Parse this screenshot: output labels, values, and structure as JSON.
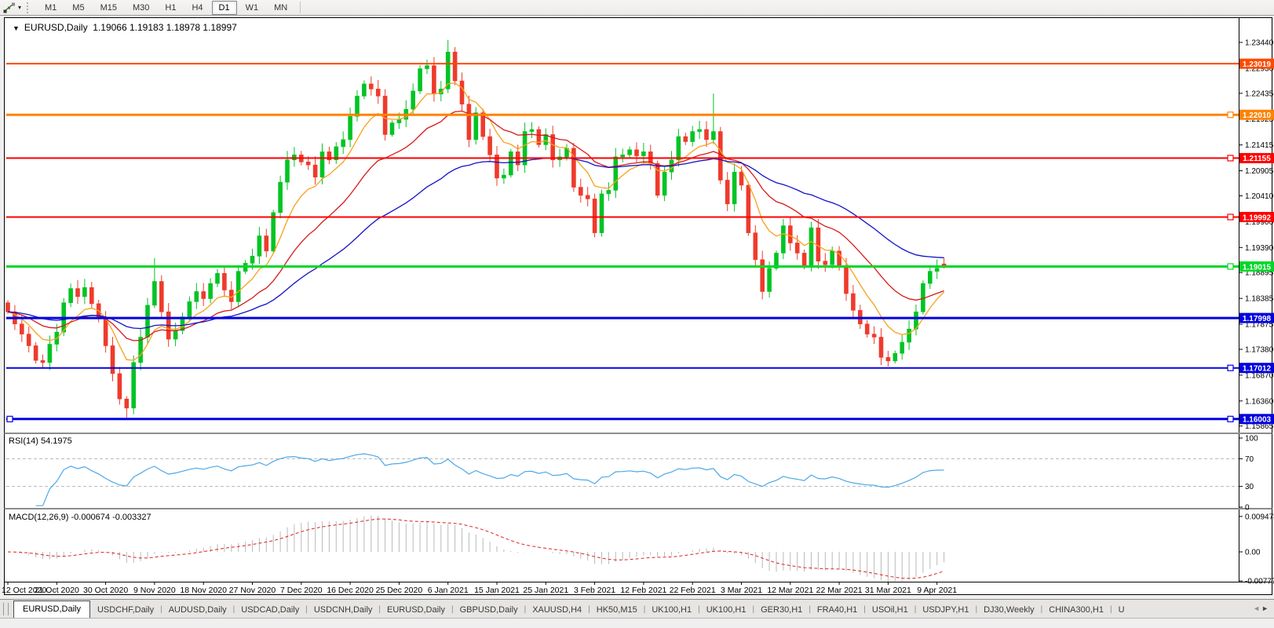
{
  "toolbar": {
    "tool_icon": "line-studies-icon",
    "tool_caret": "▾",
    "timeframes": [
      "M1",
      "M5",
      "M15",
      "M30",
      "H1",
      "H4",
      "D1",
      "W1",
      "MN"
    ],
    "active_timeframe": "D1"
  },
  "chart": {
    "symbol": "EURUSD",
    "timeframe": "Daily",
    "title": "EURUSD,Daily",
    "expand_caret": "▼",
    "ohlc": "1.19066 1.19183 1.18978 1.18997",
    "colors": {
      "background": "#ffffff",
      "border": "#000000",
      "up": "#00C424",
      "down": "#EE3B2C",
      "ma_fast": "#F7A21B",
      "ma_mid": "#D81A1A",
      "ma_slow": "#1212C8",
      "axis_text": "#000000"
    },
    "price_axis_ticks": [
      "1.23440",
      "1.22930",
      "1.22435",
      "1.21925",
      "1.21415",
      "1.20905",
      "1.20410",
      "1.19900",
      "1.19390",
      "1.18895",
      "1.18385",
      "1.17875",
      "1.17380",
      "1.16870",
      "1.16360",
      "1.15865"
    ],
    "hlines": [
      {
        "label": "1.23019",
        "value": 1.23019,
        "color": "#FF4A00",
        "thickness": 2,
        "handles": false,
        "left_handle": false
      },
      {
        "label": "1.22010",
        "value": 1.2201,
        "color": "#FF8200",
        "thickness": 3,
        "handles": true,
        "left_handle": false
      },
      {
        "label": "1.21155",
        "value": 1.21155,
        "color": "#FF0000",
        "thickness": 2,
        "handles": true,
        "left_handle": false
      },
      {
        "label": "1.19992",
        "value": 1.19992,
        "color": "#FF0000",
        "thickness": 2,
        "handles": true,
        "left_handle": false
      },
      {
        "label": "1.19015",
        "value": 1.19015,
        "color": "#00D728",
        "thickness": 3,
        "handles": true,
        "left_handle": false
      },
      {
        "label": "1.17998",
        "value": 1.17998,
        "color": "#0202E0",
        "thickness": 3,
        "handles": false,
        "left_handle": false
      },
      {
        "label": "1.17012",
        "value": 1.17012,
        "color": "#0202E0",
        "thickness": 2,
        "handles": true,
        "left_handle": false
      },
      {
        "label": "1.16003",
        "value": 1.16003,
        "color": "#0202E0",
        "thickness": 3,
        "handles": true,
        "left_handle": true
      }
    ],
    "dates": [
      "12 Oct 2020",
      "21 Oct 2020",
      "30 Oct 2020",
      "9 Nov 2020",
      "18 Nov 2020",
      "27 Nov 2020",
      "7 Dec 2020",
      "16 Dec 2020",
      "25 Dec 2020",
      "6 Jan 2021",
      "15 Jan 2021",
      "25 Jan 2021",
      "3 Feb 2021",
      "12 Feb 2021",
      "22 Feb 2021",
      "3 Mar 2021",
      "12 Mar 2021",
      "22 Mar 2021",
      "31 Mar 2021",
      "9 Apr 2021"
    ],
    "candles": {
      "first_open": 1.183,
      "closes": [
        1.1812,
        1.1788,
        1.1768,
        1.1745,
        1.1716,
        1.1712,
        1.1748,
        1.1772,
        1.183,
        1.1858,
        1.1842,
        1.186,
        1.1828,
        1.1798,
        1.1745,
        1.169,
        1.164,
        1.1622,
        1.1712,
        1.1762,
        1.1825,
        1.1872,
        1.1812,
        1.1758,
        1.1775,
        1.1802,
        1.1832,
        1.1852,
        1.1838,
        1.1868,
        1.1888,
        1.1855,
        1.1832,
        1.1892,
        1.1908,
        1.1922,
        1.1962,
        1.1932,
        1.2008,
        1.2068,
        1.2112,
        1.2122,
        1.2108,
        1.2102,
        1.2078,
        1.2128,
        1.2112,
        1.2138,
        1.2152,
        1.2198,
        1.2238,
        1.2262,
        1.2252,
        1.2238,
        1.2162,
        1.2185,
        1.2192,
        1.2212,
        1.2248,
        1.2292,
        1.2298,
        1.2242,
        1.2252,
        1.2325,
        1.2268,
        1.2222,
        1.2152,
        1.2205,
        1.2158,
        1.2122,
        1.2076,
        1.2082,
        1.2128,
        1.2102,
        1.2168,
        1.2172,
        1.2142,
        1.2162,
        1.2112,
        1.2118,
        1.2135,
        1.2058,
        1.2042,
        1.2035,
        1.1968,
        1.2045,
        1.2052,
        1.2118,
        1.2122,
        1.2132,
        1.212,
        1.2128,
        1.2105,
        1.2042,
        1.2088,
        1.2112,
        1.2158,
        1.2148,
        1.2168,
        1.2172,
        1.2152,
        1.2168,
        1.2072,
        1.2025,
        1.2088,
        1.2062,
        1.1968,
        1.1915,
        1.1852,
        1.1898,
        1.1928,
        1.1982,
        1.1948,
        1.1928,
        1.1902,
        1.1978,
        1.1912,
        1.1905,
        1.1932,
        1.1902,
        1.1848,
        1.1815,
        1.1788,
        1.1768,
        1.1762,
        1.1722,
        1.1715,
        1.173,
        1.1752,
        1.1778,
        1.1812,
        1.1868,
        1.1892,
        1.1898,
        1.19
      ],
      "overrides": {
        "17": {
          "l": 1.1603
        },
        "21": {
          "h": 1.1918
        },
        "63": {
          "h": 1.2349
        },
        "101": {
          "h": 1.2243
        },
        "126": {
          "l": 1.1704
        },
        "134": {
          "o": 1.19066,
          "h": 1.19183,
          "l": 1.18978,
          "c": 1.18997
        }
      }
    },
    "moving_averages": [
      {
        "name": "fast",
        "period": 8,
        "color": "#F7A21B"
      },
      {
        "name": "mid",
        "period": 20,
        "color": "#D81A1A"
      },
      {
        "name": "slow",
        "period": 45,
        "color": "#1212C8"
      }
    ]
  },
  "rsi": {
    "name": "RSI(14)",
    "value": "54.1975",
    "period": 14,
    "color": "#4FA8E8",
    "axis_ticks": [
      "100",
      "70",
      "30",
      "0"
    ],
    "dashed_levels": [
      "70",
      "30"
    ]
  },
  "macd": {
    "name": "MACD(12,26,9)",
    "values": "-0.000674 -0.003327",
    "hist_color": "#BABABA",
    "signal_color": "#E02020",
    "axis_ticks": [
      "0.009478",
      "0.00",
      "-0.007778"
    ]
  },
  "tabs": {
    "items": [
      {
        "label": "EURUSD,Daily",
        "active": true
      },
      {
        "label": "USDCHF,Daily",
        "active": false
      },
      {
        "label": "AUDUSD,Daily",
        "active": false
      },
      {
        "label": "USDCAD,Daily",
        "active": false
      },
      {
        "label": "USDCNH,Daily",
        "active": false
      },
      {
        "label": "EURUSD,Daily",
        "active": false
      },
      {
        "label": "GBPUSD,Daily",
        "active": false
      },
      {
        "label": "XAUUSD,H4",
        "active": false
      },
      {
        "label": "HK50,M15",
        "active": false
      },
      {
        "label": "UK100,H1",
        "active": false
      },
      {
        "label": "UK100,H1",
        "active": false
      },
      {
        "label": "GER30,H1",
        "active": false
      },
      {
        "label": "FRA40,H1",
        "active": false
      },
      {
        "label": "USOil,H1",
        "active": false
      },
      {
        "label": "USDJPY,H1",
        "active": false
      },
      {
        "label": "DJ30,Weekly",
        "active": false
      },
      {
        "label": "CHINA300,H1",
        "active": false
      },
      {
        "label": "U",
        "active": false
      }
    ],
    "scroll_left": "◄",
    "scroll_right": "►"
  }
}
